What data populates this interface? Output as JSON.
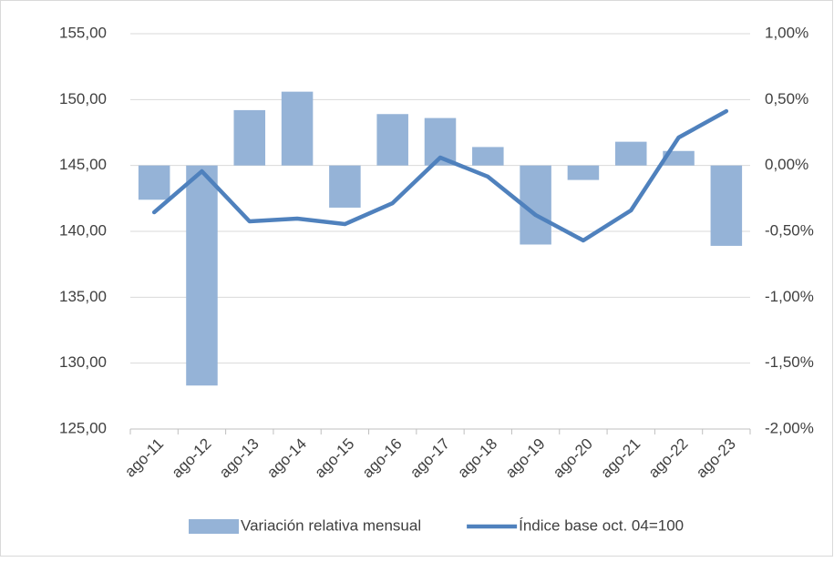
{
  "chart_data": {
    "type": "bar-line",
    "categories": [
      "ago-11",
      "ago-12",
      "ago-13",
      "ago-14",
      "ago-15",
      "ago-16",
      "ago-17",
      "ago-18",
      "ago-19",
      "ago-20",
      "ago-21",
      "ago-22",
      "ago-23"
    ],
    "series": [
      {
        "name": "Variación relativa mensual",
        "type": "bar",
        "axis": "y2",
        "color": "#95b3d7",
        "values": [
          -0.26,
          -1.67,
          0.42,
          0.56,
          -0.32,
          0.39,
          0.36,
          0.14,
          -0.6,
          -0.11,
          0.18,
          0.11,
          -0.61
        ]
      },
      {
        "name": "Índice base oct. 04=100",
        "type": "line",
        "color": "#4f81bd",
        "values": [
          141.45,
          144.56,
          140.76,
          140.97,
          140.55,
          142.14,
          145.6,
          144.15,
          141.24,
          139.31,
          141.59,
          147.12,
          149.12
        ]
      }
    ],
    "ylim": [
      125,
      155
    ],
    "yticks": [
      {
        "value": 125,
        "label": "125,00"
      },
      {
        "value": 130,
        "label": "130,00"
      },
      {
        "value": 135,
        "label": "135,00"
      },
      {
        "value": 140,
        "label": "140,00"
      },
      {
        "value": 145,
        "label": "145,00"
      },
      {
        "value": 150,
        "label": "150,00"
      },
      {
        "value": 155,
        "label": "155,00"
      }
    ],
    "y2lim": [
      -2,
      1
    ],
    "y2ticks": [
      {
        "value": -2,
        "label": "-2,00%"
      },
      {
        "value": -1.5,
        "label": "-1,50%"
      },
      {
        "value": -1,
        "label": "-1,00%"
      },
      {
        "value": -0.5,
        "label": "-0,50%"
      },
      {
        "value": 0,
        "label": "0,00%"
      },
      {
        "value": 0.5,
        "label": "0,50%"
      },
      {
        "value": 1,
        "label": "1,00%"
      }
    ],
    "grid": true
  }
}
